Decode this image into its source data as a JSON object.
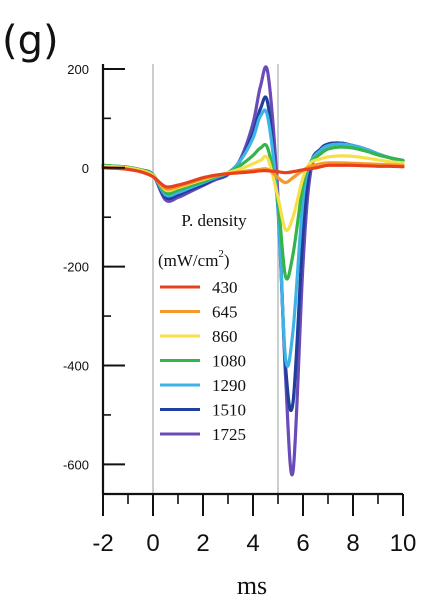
{
  "panel_label": "(g)",
  "chart_data": {
    "type": "line",
    "xlabel": "ms",
    "ylabel": "",
    "xlim": [
      -2,
      10
    ],
    "ylim": [
      -660,
      210
    ],
    "x_ticks": [
      "-2",
      "0",
      "2",
      "4",
      "6",
      "8",
      "10"
    ],
    "y_ticks": [
      "200",
      "0",
      "-200",
      "-400",
      "-600"
    ],
    "vertical_markers": [
      0,
      5
    ],
    "legend": {
      "title": "P. density",
      "unit_prefix": "(mW/cm",
      "unit_exp": "2",
      "unit_suffix": ")",
      "placement": "center"
    },
    "x": [
      -2,
      -1.5,
      -1,
      -0.5,
      0,
      0.5,
      1,
      1.5,
      2,
      2.5,
      3,
      3.5,
      4,
      4.3,
      4.6,
      5,
      5.3,
      5.6,
      6,
      6.3,
      6.7,
      7,
      7.5,
      8,
      8.5,
      9,
      9.5,
      10
    ],
    "series": [
      {
        "name": "430",
        "color": "#e8401c",
        "values": [
          0,
          -1,
          -3,
          -8,
          -18,
          -38,
          -35,
          -28,
          -20,
          -15,
          -12,
          -10,
          -8,
          -6,
          -6,
          -8,
          -10,
          -8,
          -4,
          -2,
          2,
          5,
          5,
          5,
          4,
          3,
          3,
          2
        ]
      },
      {
        "name": "645",
        "color": "#f59a2a",
        "values": [
          0,
          -1,
          -3,
          -8,
          -18,
          -42,
          -38,
          -30,
          -22,
          -16,
          -12,
          -8,
          -5,
          -3,
          -3,
          -20,
          -30,
          -20,
          -5,
          3,
          8,
          10,
          10,
          9,
          8,
          7,
          6,
          5
        ]
      },
      {
        "name": "860",
        "color": "#f5e04a",
        "values": [
          3,
          2,
          0,
          -5,
          -15,
          -45,
          -40,
          -32,
          -24,
          -16,
          -10,
          -2,
          8,
          15,
          18,
          -60,
          -125,
          -100,
          -20,
          10,
          18,
          22,
          24,
          23,
          20,
          16,
          12,
          10
        ]
      },
      {
        "name": "1080",
        "color": "#33b54a",
        "values": [
          5,
          3,
          1,
          -4,
          -14,
          -50,
          -45,
          -36,
          -28,
          -18,
          -10,
          5,
          25,
          40,
          38,
          -70,
          -220,
          -175,
          -35,
          10,
          28,
          38,
          42,
          40,
          34,
          26,
          20,
          15
        ]
      },
      {
        "name": "1290",
        "color": "#3fb3e8",
        "values": [
          5,
          3,
          1,
          -4,
          -14,
          -55,
          -50,
          -40,
          -30,
          -20,
          -10,
          15,
          60,
          105,
          100,
          -80,
          -385,
          -330,
          -65,
          10,
          35,
          45,
          48,
          45,
          38,
          28,
          20,
          15
        ]
      },
      {
        "name": "1510",
        "color": "#213f9c",
        "values": [
          5,
          3,
          1,
          -4,
          -14,
          -60,
          -55,
          -44,
          -34,
          -22,
          -12,
          15,
          70,
          120,
          128,
          -85,
          -400,
          -475,
          -135,
          5,
          38,
          48,
          50,
          45,
          38,
          28,
          20,
          15
        ]
      },
      {
        "name": "1725",
        "color": "#6a4bb8",
        "values": [
          5,
          3,
          1,
          -4,
          -14,
          -65,
          -60,
          -48,
          -36,
          -24,
          -14,
          18,
          90,
          165,
          190,
          -60,
          -420,
          -615,
          -195,
          -10,
          35,
          48,
          50,
          45,
          38,
          28,
          20,
          15
        ]
      }
    ]
  }
}
